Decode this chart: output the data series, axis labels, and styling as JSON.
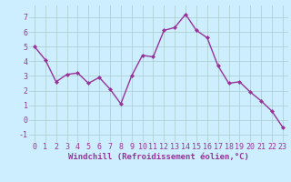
{
  "x": [
    0,
    1,
    2,
    3,
    4,
    5,
    6,
    7,
    8,
    9,
    10,
    11,
    12,
    13,
    14,
    15,
    16,
    17,
    18,
    19,
    20,
    21,
    22,
    23
  ],
  "y": [
    5.0,
    4.1,
    2.6,
    3.1,
    3.2,
    2.5,
    2.9,
    2.1,
    1.1,
    3.0,
    4.4,
    4.3,
    6.1,
    6.3,
    7.2,
    6.1,
    5.6,
    3.7,
    2.5,
    2.6,
    1.9,
    1.3,
    0.6,
    -0.5
  ],
  "line_color": "#993399",
  "marker": "D",
  "marker_size": 2,
  "bg_color": "#cceeff",
  "grid_color": "#aacccc",
  "xlabel": "Windchill (Refroidissement éolien,°C)",
  "xlim_min": -0.5,
  "xlim_max": 23.5,
  "ylim_min": -1.5,
  "ylim_max": 7.8,
  "yticks": [
    -1,
    0,
    1,
    2,
    3,
    4,
    5,
    6,
    7
  ],
  "xticks": [
    0,
    1,
    2,
    3,
    4,
    5,
    6,
    7,
    8,
    9,
    10,
    11,
    12,
    13,
    14,
    15,
    16,
    17,
    18,
    19,
    20,
    21,
    22,
    23
  ],
  "label_color": "#993399",
  "xlabel_fontsize": 6.5,
  "tick_fontsize": 6,
  "line_width": 1.0
}
